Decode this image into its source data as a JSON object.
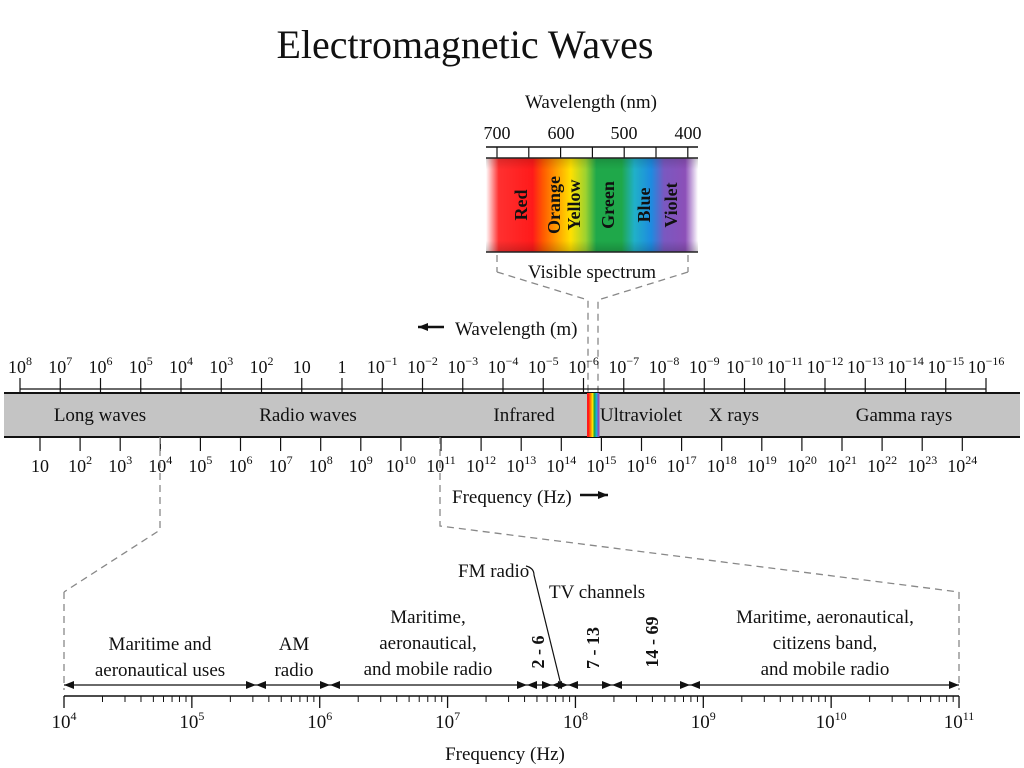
{
  "title": "Electromagnetic Waves",
  "visible": {
    "axis_label": "Wavelength (nm)",
    "ticks": [
      "700",
      "600",
      "500",
      "400"
    ],
    "bands": [
      "Red",
      "Orange",
      "Yellow",
      "Green",
      "Blue",
      "Violet"
    ],
    "caption": "Visible spectrum"
  },
  "spectrum": {
    "wavelength_label": "Wavelength (m)",
    "frequency_label": "Frequency (Hz)",
    "wavelength_ticks": [
      {
        "b": "10",
        "e": "8"
      },
      {
        "b": "10",
        "e": "7"
      },
      {
        "b": "10",
        "e": "6"
      },
      {
        "b": "10",
        "e": "5"
      },
      {
        "b": "10",
        "e": "4"
      },
      {
        "b": "10",
        "e": "3"
      },
      {
        "b": "10",
        "e": "2"
      },
      {
        "b": "10",
        "e": ""
      },
      {
        "b": "1",
        "e": ""
      },
      {
        "b": "10",
        "e": "−1"
      },
      {
        "b": "10",
        "e": "−2"
      },
      {
        "b": "10",
        "e": "−3"
      },
      {
        "b": "10",
        "e": "−4"
      },
      {
        "b": "10",
        "e": "−5"
      },
      {
        "b": "10",
        "e": "−6"
      },
      {
        "b": "10",
        "e": "−7"
      },
      {
        "b": "10",
        "e": "−8"
      },
      {
        "b": "10",
        "e": "−9"
      },
      {
        "b": "10",
        "e": "−10"
      },
      {
        "b": "10",
        "e": "−11"
      },
      {
        "b": "10",
        "e": "−12"
      },
      {
        "b": "10",
        "e": "−13"
      },
      {
        "b": "10",
        "e": "−14"
      },
      {
        "b": "10",
        "e": "−15"
      },
      {
        "b": "10",
        "e": "−16"
      }
    ],
    "frequency_ticks": [
      {
        "b": "10",
        "e": ""
      },
      {
        "b": "10",
        "e": "2"
      },
      {
        "b": "10",
        "e": "3"
      },
      {
        "b": "10",
        "e": "4"
      },
      {
        "b": "10",
        "e": "5"
      },
      {
        "b": "10",
        "e": "6"
      },
      {
        "b": "10",
        "e": "7"
      },
      {
        "b": "10",
        "e": "8"
      },
      {
        "b": "10",
        "e": "9"
      },
      {
        "b": "10",
        "e": "10"
      },
      {
        "b": "10",
        "e": "11"
      },
      {
        "b": "10",
        "e": "12"
      },
      {
        "b": "10",
        "e": "13"
      },
      {
        "b": "10",
        "e": "14"
      },
      {
        "b": "10",
        "e": "15"
      },
      {
        "b": "10",
        "e": "16"
      },
      {
        "b": "10",
        "e": "17"
      },
      {
        "b": "10",
        "e": "18"
      },
      {
        "b": "10",
        "e": "19"
      },
      {
        "b": "10",
        "e": "20"
      },
      {
        "b": "10",
        "e": "21"
      },
      {
        "b": "10",
        "e": "22"
      },
      {
        "b": "10",
        "e": "23"
      },
      {
        "b": "10",
        "e": "24"
      }
    ],
    "regions": [
      "Long waves",
      "Radio waves",
      "Infrared",
      "Ultraviolet",
      "X rays",
      "Gamma rays"
    ]
  },
  "radio": {
    "axis_label": "Frequency (Hz)",
    "ticks": [
      {
        "b": "10",
        "e": "4"
      },
      {
        "b": "10",
        "e": "5"
      },
      {
        "b": "10",
        "e": "6"
      },
      {
        "b": "10",
        "e": "7"
      },
      {
        "b": "10",
        "e": "8"
      },
      {
        "b": "10",
        "e": "9"
      },
      {
        "b": "10",
        "e": "10"
      },
      {
        "b": "10",
        "e": "11"
      }
    ],
    "maritime_aero": [
      "Maritime and",
      "aeronautical uses"
    ],
    "am": [
      "AM",
      "radio"
    ],
    "maritime_mobile": [
      "Maritime,",
      "aeronautical,",
      "and mobile radio"
    ],
    "fm": "FM radio",
    "tv": "TV channels",
    "ch_2_6": "2 - 6",
    "ch_7_13": "7 - 13",
    "ch_14_69": "14 - 69",
    "maritime_cb": [
      "Maritime, aeronautical,",
      "citizens band,",
      "and mobile radio"
    ]
  },
  "colors": {
    "band_gray": "#c4c4c4",
    "red": "#ff1a1a",
    "orange": "#ff7a00",
    "yellow": "#ffe000",
    "green": "#1fa84a",
    "blue": "#1ea6e0",
    "violet": "#8c4fb8"
  }
}
